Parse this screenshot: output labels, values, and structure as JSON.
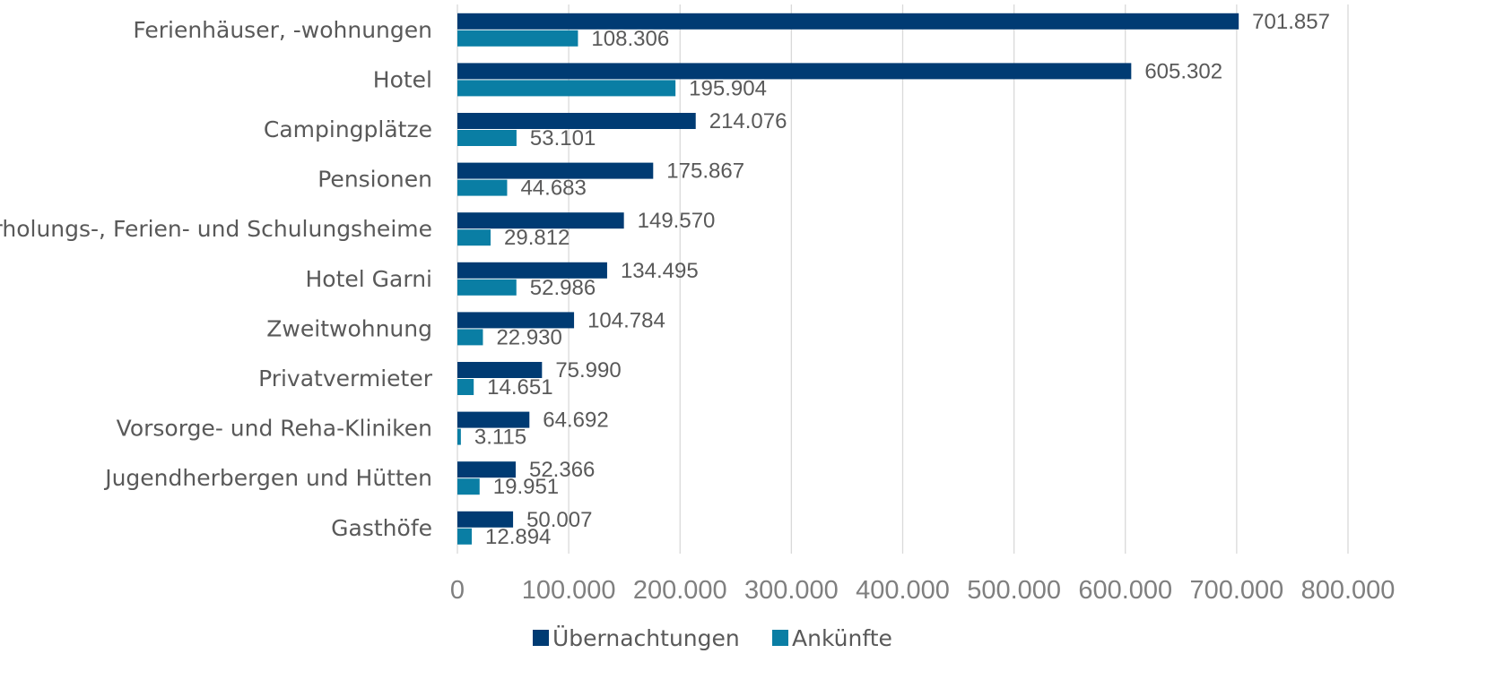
{
  "chart_data": {
    "type": "bar",
    "orientation": "horizontal",
    "categories": [
      "Ferienhäuser, -wohnungen",
      "Hotel",
      "Campingplätze",
      "Pensionen",
      "Erholungs-, Ferien- und Schulungsheime",
      "Hotel Garni",
      "Zweitwohnung",
      "Privatvermieter",
      "Vorsorge- und Reha-Kliniken",
      "Jugendherbergen und Hütten",
      "Gasthöfe"
    ],
    "series": [
      {
        "name": "Übernachtungen",
        "color": "#003b73",
        "values": [
          701857,
          605302,
          214076,
          175867,
          149570,
          134495,
          104784,
          75990,
          64692,
          52366,
          50007
        ],
        "labels": [
          "701.857",
          "605.302",
          "214.076",
          "175.867",
          "149.570",
          "134.495",
          "104.784",
          "75.990",
          "64.692",
          "52.366",
          "50.007"
        ]
      },
      {
        "name": "Ankünfte",
        "color": "#0a7ea4",
        "values": [
          108306,
          195904,
          53101,
          44683,
          29812,
          52986,
          22930,
          14651,
          3115,
          19951,
          12894
        ],
        "labels": [
          "108.306",
          "195.904",
          "53.101",
          "44.683",
          "29.812",
          "52.986",
          "22.930",
          "14.651",
          "3.115",
          "19.951",
          "12.894"
        ]
      }
    ],
    "xlim": [
      0,
      800000
    ],
    "xticks": [
      0,
      100000,
      200000,
      300000,
      400000,
      500000,
      600000,
      700000,
      800000
    ],
    "xtick_labels": [
      "0",
      "100.000",
      "200.000",
      "300.000",
      "400.000",
      "500.000",
      "600.000",
      "700.000",
      "800.000"
    ],
    "grid": "vertical",
    "legend": "bottom-center"
  }
}
